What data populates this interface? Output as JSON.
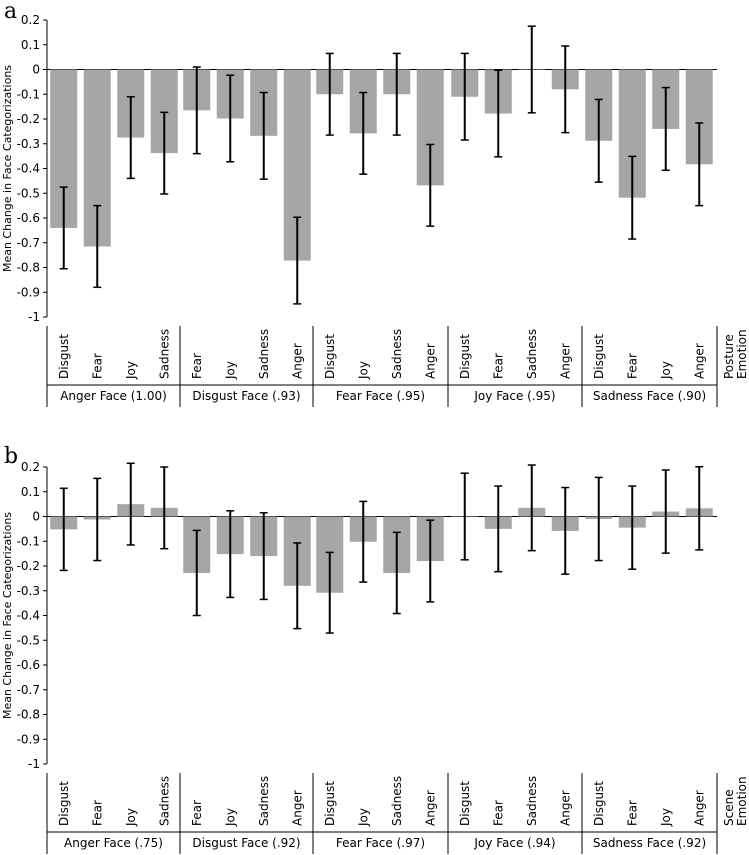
{
  "chart_data": [
    {
      "type": "bar",
      "panel_label": "a",
      "ylabel": "Mean Change in Face Categorizations",
      "context_label_line1": "Posture",
      "context_label_line2": "Emotion",
      "ylim": [
        -1,
        0.2
      ],
      "yticks": [
        "0.2",
        "0.1",
        "0",
        "-0.1",
        "-0.2",
        "-0.3",
        "-0.4",
        "-0.5",
        "-0.6",
        "-0.7",
        "-0.8",
        "-0.9",
        "-1"
      ],
      "bar_color": "#a6a6a6",
      "groups": [
        {
          "label": "Anger Face (1.00)",
          "categories": [
            "Disgust",
            "Fear",
            "Joy",
            "Sadness"
          ],
          "values": [
            -0.64,
            -0.715,
            -0.275,
            -0.338
          ],
          "err_low": [
            -0.805,
            -0.88,
            -0.44,
            -0.503
          ],
          "err_high": [
            -0.475,
            -0.55,
            -0.11,
            -0.173
          ]
        },
        {
          "label": "Disgust Face (.93)",
          "categories": [
            "Fear",
            "Joy",
            "Sadness",
            "Anger"
          ],
          "values": [
            -0.165,
            -0.198,
            -0.268,
            -0.772
          ],
          "err_low": [
            -0.34,
            -0.373,
            -0.443,
            -0.947
          ],
          "err_high": [
            0.01,
            -0.023,
            -0.093,
            -0.597
          ]
        },
        {
          "label": "Fear Face (.95)",
          "categories": [
            "Disgust",
            "Joy",
            "Sadness",
            "Anger"
          ],
          "values": [
            -0.1,
            -0.258,
            -0.1,
            -0.468
          ],
          "err_low": [
            -0.265,
            -0.423,
            -0.265,
            -0.633
          ],
          "err_high": [
            0.065,
            -0.093,
            0.065,
            -0.303
          ]
        },
        {
          "label": "Joy Face (.95)",
          "categories": [
            "Disgust",
            "Fear",
            "Sadness",
            "Anger"
          ],
          "values": [
            -0.11,
            -0.178,
            0.0,
            -0.08
          ],
          "err_low": [
            -0.285,
            -0.353,
            -0.175,
            -0.255
          ],
          "err_high": [
            0.065,
            -0.003,
            0.175,
            0.095
          ]
        },
        {
          "label": "Sadness Face (.90)",
          "categories": [
            "Disgust",
            "Fear",
            "Joy",
            "Anger"
          ],
          "values": [
            -0.288,
            -0.518,
            -0.24,
            -0.383
          ],
          "err_low": [
            -0.455,
            -0.685,
            -0.407,
            -0.55
          ],
          "err_high": [
            -0.121,
            -0.351,
            -0.073,
            -0.216
          ]
        }
      ]
    },
    {
      "type": "bar",
      "panel_label": "b",
      "ylabel": "Mean Change in Face Categorizations",
      "context_label_line1": "Scene",
      "context_label_line2": "Emotion",
      "ylim": [
        -1,
        0.2
      ],
      "yticks": [
        "0.2",
        "0.1",
        "0",
        "-0.1",
        "-0.2",
        "-0.3",
        "-0.4",
        "-0.5",
        "-0.6",
        "-0.7",
        "-0.8",
        "-0.9",
        "-1"
      ],
      "bar_color": "#a6a6a6",
      "groups": [
        {
          "label": "Anger Face (.75)",
          "categories": [
            "Disgust",
            "Fear",
            "Joy",
            "Sadness"
          ],
          "values": [
            -0.052,
            -0.012,
            0.05,
            0.035
          ],
          "err_low": [
            -0.218,
            -0.178,
            -0.115,
            -0.13
          ],
          "err_high": [
            0.114,
            0.154,
            0.215,
            0.2
          ]
        },
        {
          "label": "Disgust Face (.92)",
          "categories": [
            "Fear",
            "Joy",
            "Sadness",
            "Anger"
          ],
          "values": [
            -0.228,
            -0.152,
            -0.16,
            -0.28
          ],
          "err_low": [
            -0.4,
            -0.327,
            -0.335,
            -0.453
          ],
          "err_high": [
            -0.056,
            0.023,
            0.015,
            -0.107
          ]
        },
        {
          "label": "Fear Face (.97)",
          "categories": [
            "Disgust",
            "Joy",
            "Sadness",
            "Anger"
          ],
          "values": [
            -0.308,
            -0.102,
            -0.228,
            -0.18
          ],
          "err_low": [
            -0.471,
            -0.265,
            -0.392,
            -0.345
          ],
          "err_high": [
            -0.145,
            0.061,
            -0.064,
            -0.015
          ]
        },
        {
          "label": "Joy Face (.94)",
          "categories": [
            "Disgust",
            "Fear",
            "Sadness",
            "Anger"
          ],
          "values": [
            0.0,
            -0.05,
            0.035,
            -0.058
          ],
          "err_low": [
            -0.175,
            -0.223,
            -0.138,
            -0.233
          ],
          "err_high": [
            0.175,
            0.123,
            0.208,
            0.117
          ]
        },
        {
          "label": "Sadness Face (.92)",
          "categories": [
            "Disgust",
            "Fear",
            "Joy",
            "Anger"
          ],
          "values": [
            -0.01,
            -0.045,
            0.02,
            0.033
          ],
          "err_low": [
            -0.178,
            -0.213,
            -0.148,
            -0.135
          ],
          "err_high": [
            0.158,
            0.123,
            0.188,
            0.201
          ]
        }
      ]
    }
  ]
}
